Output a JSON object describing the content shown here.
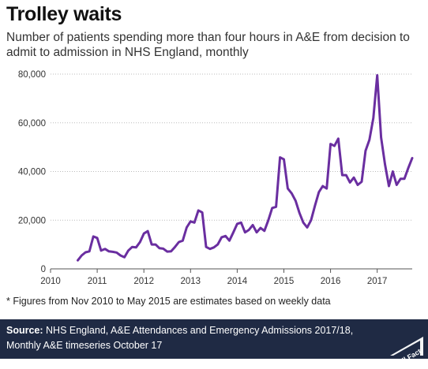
{
  "header": {
    "title": "Trolley waits",
    "subtitle": "Number of patients spending more than four hours in A&E from decision to admit to admission in NHS England, monthly"
  },
  "note": "* Figures from Nov 2010 to May 2015  are estimates based on weekly data",
  "footer": {
    "source_label": "Source:",
    "source_text": "NHS England, A&E Attendances and Emergency Admissions 2017/18, Monthly A&E timeseries October 17",
    "logo_text": "Full Fact",
    "background": "#1f2a44"
  },
  "chart_data": {
    "type": "line",
    "title": "",
    "xlabel": "",
    "ylabel": "",
    "xlim": [
      2010,
      2017.75
    ],
    "ylim": [
      0,
      80000
    ],
    "x_ticks": [
      2010,
      2011,
      2012,
      2013,
      2014,
      2015,
      2016,
      2017
    ],
    "x_tick_labels": [
      "2010",
      "2011",
      "2012",
      "2013",
      "2014",
      "2015",
      "2016",
      "2017"
    ],
    "y_ticks": [
      0,
      20000,
      40000,
      60000,
      80000
    ],
    "y_tick_labels": [
      "0",
      "20,000",
      "40,000",
      "60,000",
      "80,000"
    ],
    "grid": "horizontal dotted",
    "legend": "none",
    "line_color": "#6a2ea0",
    "series": [
      {
        "x": [
          2010.583,
          2010.667,
          2010.75,
          2010.833,
          2010.917,
          2011.0,
          2011.083,
          2011.167,
          2011.25,
          2011.333,
          2011.417,
          2011.5,
          2011.583,
          2011.667,
          2011.75,
          2011.833,
          2011.917,
          2012.0,
          2012.083,
          2012.167,
          2012.25,
          2012.333,
          2012.417,
          2012.5,
          2012.583,
          2012.667,
          2012.75,
          2012.833,
          2012.917,
          2013.0,
          2013.083,
          2013.167,
          2013.25,
          2013.333,
          2013.417,
          2013.5,
          2013.583,
          2013.667,
          2013.75,
          2013.833,
          2013.917,
          2014.0,
          2014.083,
          2014.167,
          2014.25,
          2014.333,
          2014.417,
          2014.5,
          2014.583,
          2014.667,
          2014.75,
          2014.833,
          2014.917,
          2015.0,
          2015.083,
          2015.167,
          2015.25,
          2015.333,
          2015.417,
          2015.5,
          2015.583,
          2015.667,
          2015.75,
          2015.833,
          2015.917,
          2016.0,
          2016.083,
          2016.167,
          2016.25,
          2016.333,
          2016.417,
          2016.5,
          2016.583,
          2016.667,
          2016.75,
          2016.833,
          2016.917,
          2017.0,
          2017.083,
          2017.167,
          2017.25,
          2017.333,
          2017.417,
          2017.5,
          2017.583,
          2017.667,
          2017.75
        ],
        "values": [
          3500,
          5500,
          6800,
          7200,
          13300,
          12700,
          7500,
          8200,
          7200,
          7000,
          6700,
          5500,
          4800,
          7500,
          9000,
          8800,
          11000,
          14500,
          15500,
          10000,
          10000,
          8500,
          8300,
          7100,
          7200,
          9000,
          11000,
          11600,
          17000,
          19500,
          19000,
          24000,
          23200,
          9000,
          8200,
          8800,
          10000,
          13000,
          13500,
          11600,
          15000,
          18500,
          19000,
          15000,
          16000,
          18000,
          15000,
          16800,
          15600,
          20000,
          25000,
          25500,
          45800,
          45000,
          33000,
          31000,
          28000,
          23000,
          19000,
          17000,
          20000,
          26000,
          31500,
          34000,
          33000,
          51300,
          50500,
          53500,
          38500,
          38500,
          35500,
          37500,
          34500,
          35800,
          48500,
          53000,
          62000,
          79500,
          54000,
          43000,
          34000,
          40000,
          34500,
          37000,
          37000,
          41500,
          45500
        ]
      }
    ]
  }
}
